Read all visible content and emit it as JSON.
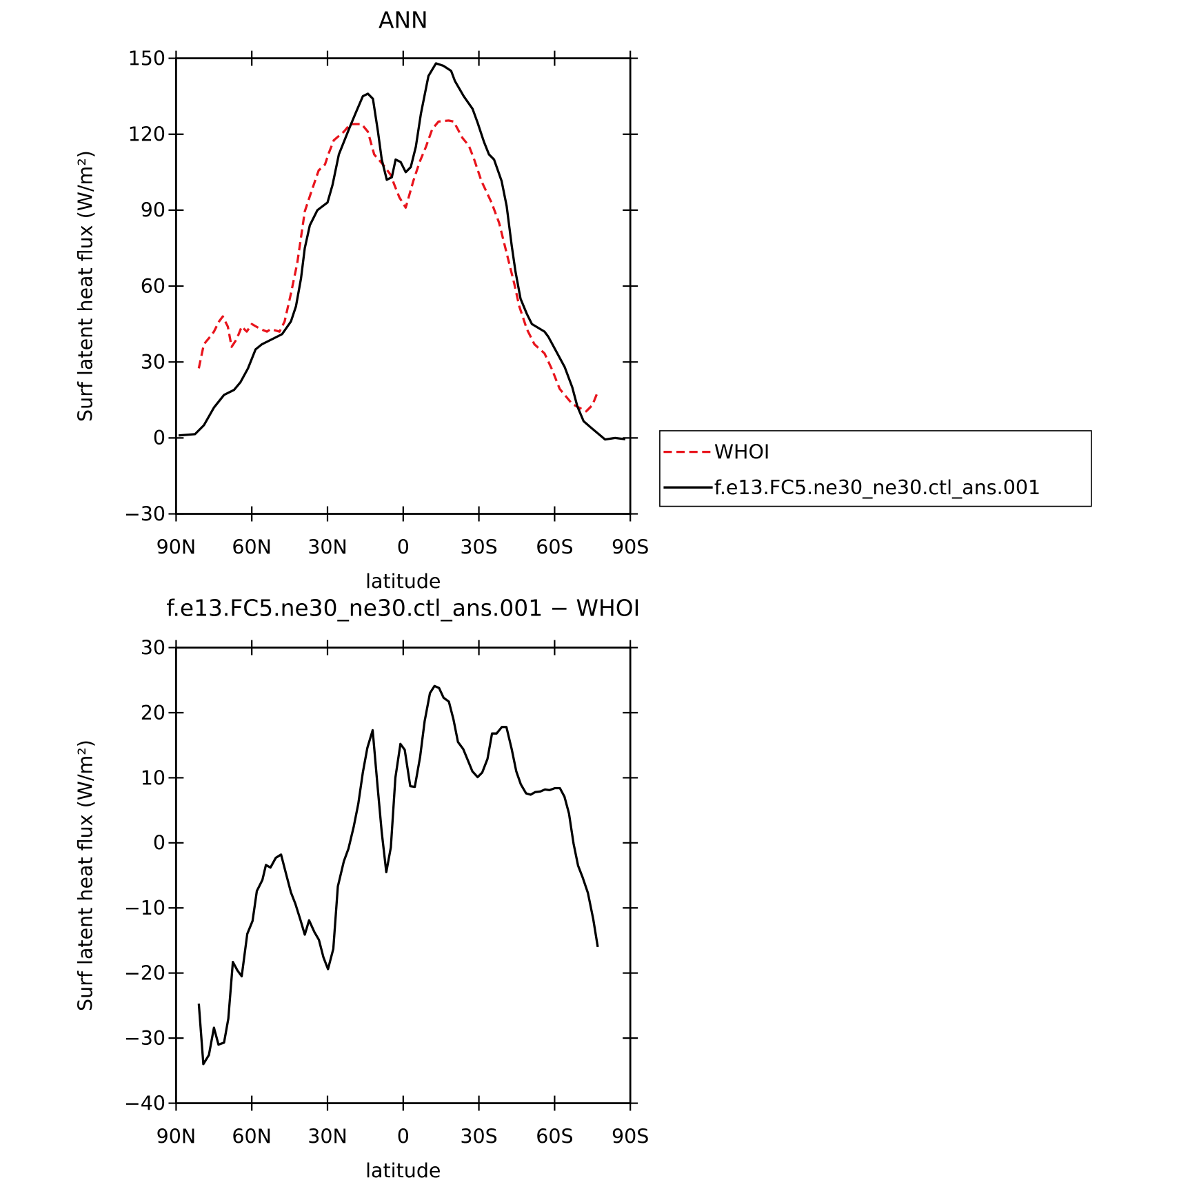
{
  "chart_data": [
    {
      "type": "line",
      "title": "ANN",
      "xlabel": "latitude",
      "ylabel": "Surf latent heat flux (W/m²)",
      "xlim": [
        90,
        -90
      ],
      "xticks": [
        {
          "value": 90,
          "label": "90N"
        },
        {
          "value": 60,
          "label": "60N"
        },
        {
          "value": 30,
          "label": "30N"
        },
        0,
        {
          "value": -30,
          "label": "30S"
        },
        {
          "value": -60,
          "label": "60S"
        },
        {
          "value": -90,
          "label": "90S"
        }
      ],
      "ylim": [
        -30,
        150
      ],
      "yticks": [
        {
          "value": -30,
          "label": "−30"
        },
        0,
        30,
        60,
        90,
        120,
        150
      ],
      "series": [
        {
          "name": "WHOI",
          "color": "#e8141c",
          "style": "dashed",
          "x": [
            81,
            79,
            76.5,
            75,
            73,
            71.5,
            69.5,
            68,
            66,
            64,
            62,
            60,
            56.5,
            54,
            52.5,
            49,
            47,
            44.5,
            42,
            39,
            36.5,
            33.5,
            31,
            29.5,
            27.5,
            23.5,
            21,
            16.5,
            14,
            11.5,
            8,
            5,
            3.5,
            1.5,
            -1,
            -4,
            -6.5,
            -9,
            -11.5,
            -14,
            -18,
            -20,
            -23.5,
            -26,
            -28,
            -31,
            -35,
            -38,
            -41,
            -44,
            -46,
            -49,
            -52,
            -56,
            -59,
            -62,
            -67,
            -72.5,
            -75,
            -77
          ],
          "values": [
            27.5,
            37,
            40,
            42,
            46,
            48,
            44,
            36,
            39,
            44,
            42,
            45,
            43,
            42,
            43,
            42,
            46,
            57,
            69,
            89.5,
            97,
            105.7,
            108,
            112.5,
            117.6,
            121,
            124,
            124,
            121,
            112,
            108,
            104,
            100,
            95,
            91,
            101.5,
            109,
            115,
            122,
            125,
            125.4,
            125,
            118.5,
            115.5,
            110.4,
            101.5,
            93,
            85,
            73,
            61,
            52,
            43,
            37,
            33.4,
            27,
            19.4,
            13.4,
            10.5,
            13,
            18
          ]
        },
        {
          "name": "f.e13.FC5.ne30_ne30.ctl_ans.001",
          "color": "#000000",
          "style": "solid",
          "x": [
            89,
            82.5,
            79,
            75,
            71,
            67,
            64.5,
            61.5,
            58.5,
            56,
            52,
            48,
            44.5,
            42.5,
            40.5,
            39,
            37,
            34,
            32,
            30,
            28,
            25.5,
            23.5,
            21.5,
            19,
            16,
            14,
            12,
            10,
            8.5,
            6.5,
            4.5,
            3,
            1,
            -1,
            -3,
            -5,
            -7,
            -10,
            -13,
            -16,
            -19,
            -20.5,
            -24,
            -27.5,
            -29.5,
            -32,
            -34,
            -36,
            -39,
            -41,
            -43,
            -44.5,
            -46.5,
            -49,
            -51,
            -56,
            -57.5,
            -64,
            -67,
            -69,
            -71.5,
            -74.5,
            -77.5,
            -80,
            -84,
            -88
          ],
          "values": [
            1,
            1.5,
            5,
            12,
            17,
            19,
            22,
            27.5,
            35,
            37,
            39,
            41,
            46,
            52,
            63,
            75,
            84,
            90,
            91.5,
            93,
            100,
            112,
            117,
            122,
            128,
            135,
            136,
            134,
            121,
            110,
            102,
            103,
            110,
            109,
            105,
            107,
            115,
            128,
            143,
            148,
            147,
            145,
            141,
            135,
            130,
            124.5,
            117,
            112,
            110,
            101.5,
            91.6,
            76,
            65.7,
            55,
            49,
            45,
            42,
            40,
            28,
            20,
            12.5,
            6.6,
            4,
            1.5,
            -0.6,
            0,
            -0.5
          ]
        }
      ]
    },
    {
      "type": "line",
      "title": "f.e13.FC5.ne30_ne30.ctl_ans.001 − WHOI",
      "xlabel": "latitude",
      "ylabel": "Surf latent heat flux (W/m²)",
      "xlim": [
        90,
        -90
      ],
      "xticks": [
        {
          "value": 90,
          "label": "90N"
        },
        {
          "value": 60,
          "label": "60N"
        },
        {
          "value": 30,
          "label": "30N"
        },
        0,
        {
          "value": -30,
          "label": "30S"
        },
        {
          "value": -60,
          "label": "60S"
        },
        {
          "value": -90,
          "label": "90S"
        }
      ],
      "ylim": [
        -40,
        30
      ],
      "yticks": [
        {
          "value": -40,
          "label": "−40"
        },
        {
          "value": -30,
          "label": "−30"
        },
        {
          "value": -20,
          "label": "−20"
        },
        {
          "value": -10,
          "label": "−10"
        },
        0,
        10,
        20,
        30
      ],
      "series": [
        {
          "color": "#000000",
          "style": "solid",
          "x": [
            81,
            79.2,
            77,
            75,
            73.2,
            71,
            69.3,
            67.5,
            65.7,
            64,
            61.8,
            59.7,
            58,
            55.8,
            54.4,
            52.6,
            50.5,
            48.4,
            46.6,
            44.5,
            42.7,
            40.6,
            39,
            37.3,
            35.2,
            33.4,
            31.6,
            29.8,
            27.7,
            25.9,
            23.5,
            21.7,
            19.6,
            17.8,
            16,
            14.2,
            12.1,
            10.3,
            8.5,
            6.7,
            4.9,
            3.1,
            1.1,
            -0.6,
            -2.8,
            -4.6,
            -6.7,
            -8.5,
            -10.6,
            -12.4,
            -14.2,
            -16,
            -18.1,
            -19.9,
            -21.7,
            -23.8,
            -25.6,
            -27.4,
            -29.5,
            -31.3,
            -33.4,
            -35.2,
            -37,
            -39.1,
            -40.9,
            -43,
            -44.8,
            -46.6,
            -48.7,
            -50.5,
            -52.3,
            -54.4,
            -56.2,
            -58,
            -60.1,
            -62.1,
            -63.9,
            -65.7,
            -67.5,
            -69.3,
            -71.1,
            -73.2,
            -75.3,
            -77.1
          ],
          "values": [
            -24.7,
            -34,
            -32.6,
            -28.4,
            -31,
            -30.7,
            -27,
            -18.3,
            -19.6,
            -20.5,
            -14,
            -12,
            -7.4,
            -5.7,
            -3.4,
            -3.8,
            -2.3,
            -1.8,
            -4.5,
            -7.6,
            -9.4,
            -12,
            -14.1,
            -11.9,
            -13.7,
            -14.9,
            -17.6,
            -19.4,
            -16.3,
            -6.7,
            -2.8,
            -0.9,
            2.5,
            6,
            10.8,
            14.6,
            17.3,
            9.3,
            1.6,
            -4.5,
            -0.7,
            10,
            15.2,
            14.3,
            8.7,
            8.6,
            13.2,
            18.7,
            23,
            24.1,
            23.8,
            22.3,
            21.7,
            19,
            15.5,
            14.4,
            12.7,
            11,
            10.1,
            10.8,
            12.9,
            16.8,
            16.8,
            17.8,
            17.8,
            14.4,
            11,
            9,
            7.6,
            7.4,
            7.8,
            7.9,
            8.2,
            8.1,
            8.4,
            8.4,
            7.1,
            4.5,
            -0.1,
            -3.5,
            -5.3,
            -7.7,
            -11.7,
            -16
          ]
        }
      ]
    }
  ]
}
